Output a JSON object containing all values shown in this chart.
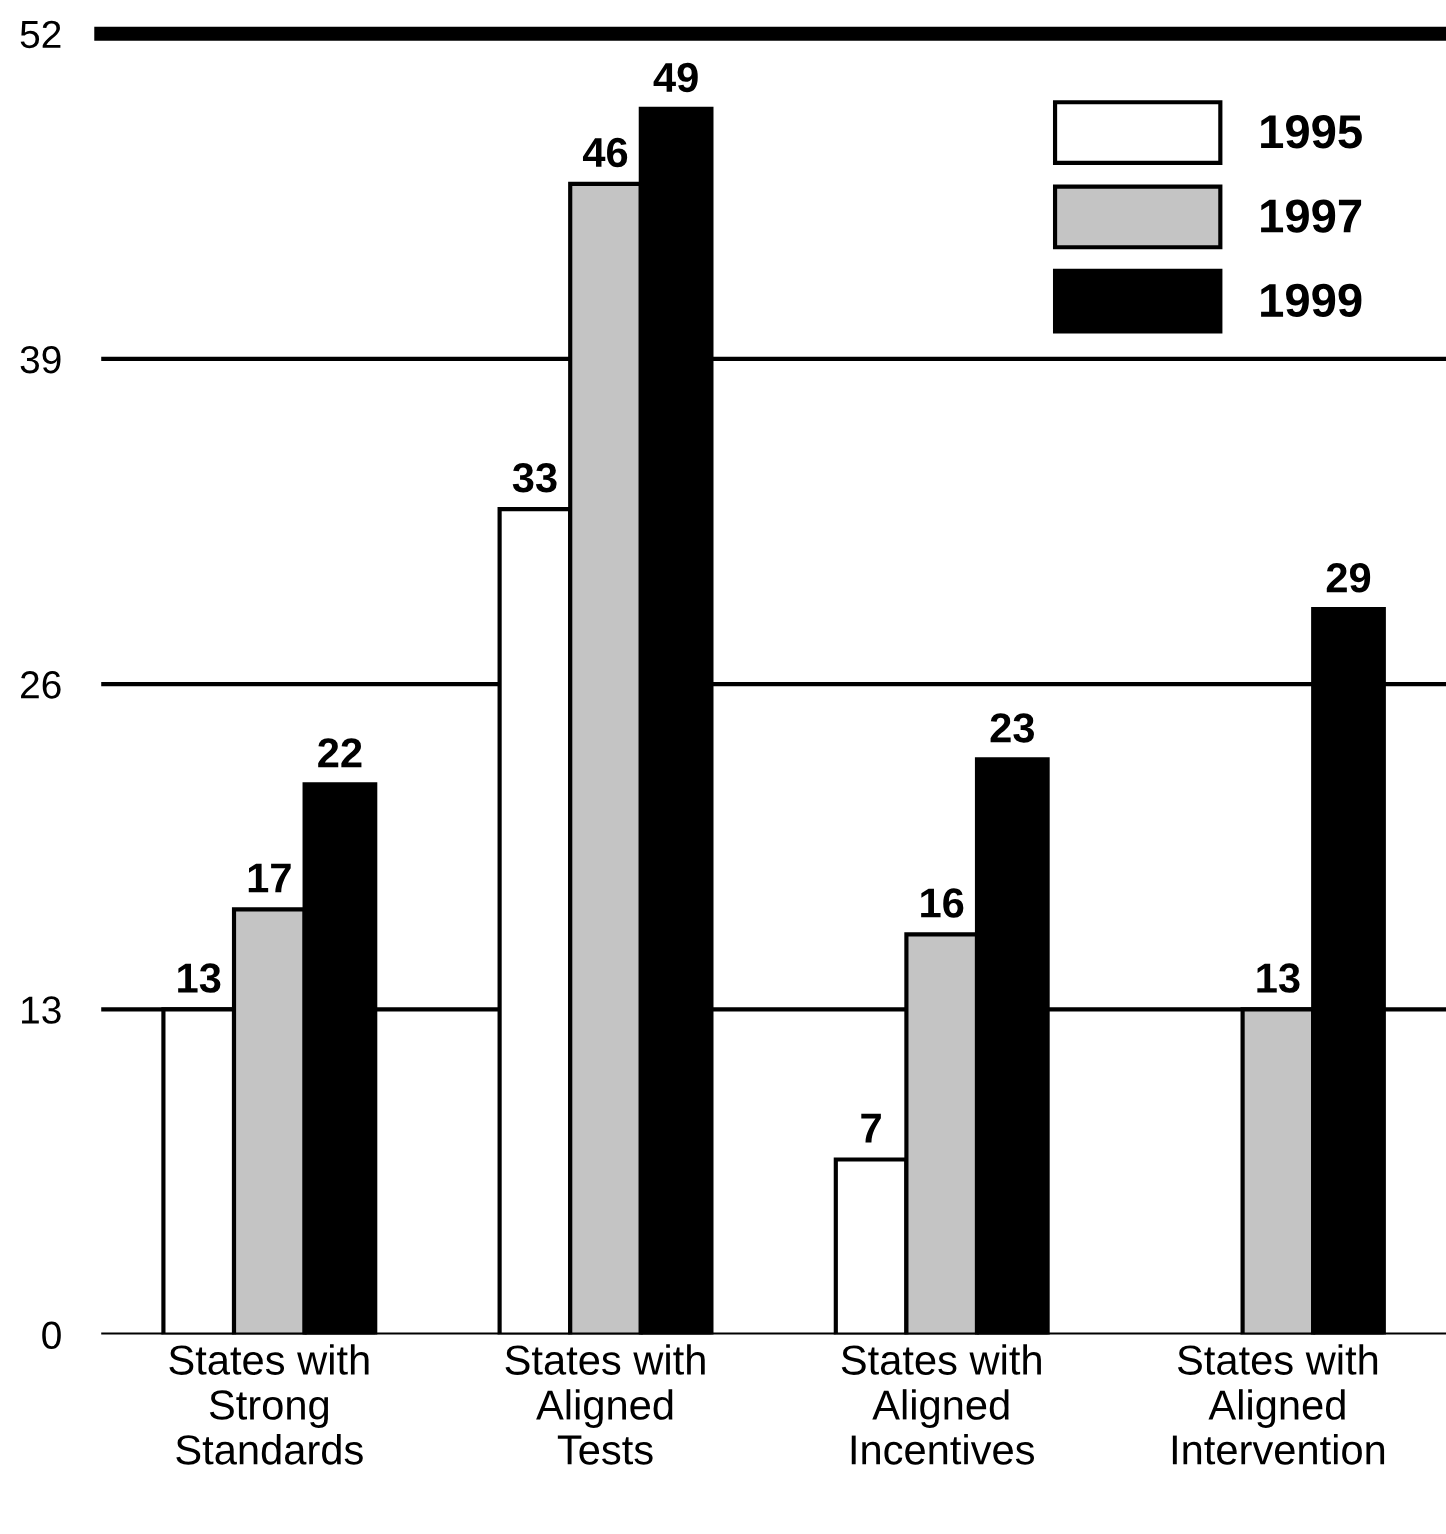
{
  "chart_data": {
    "type": "bar",
    "categories": [
      "States with\nStrong\nStandards",
      "States with\nAligned\nTests",
      "States with\nAligned\nIncentives",
      "States with\nAligned\nIntervention"
    ],
    "series": [
      {
        "name": "1995",
        "color": "#ffffff",
        "values": [
          13,
          33,
          7,
          null
        ]
      },
      {
        "name": "1997",
        "color": "#c4c4c4",
        "values": [
          17,
          46,
          16,
          13
        ]
      },
      {
        "name": "1999",
        "color": "#000000",
        "values": [
          22,
          49,
          23,
          29
        ]
      }
    ],
    "ylim": [
      0,
      52
    ],
    "yticks": [
      0,
      13,
      26,
      39,
      52
    ],
    "grid": "y",
    "legend": "top right",
    "data_labels": true
  }
}
